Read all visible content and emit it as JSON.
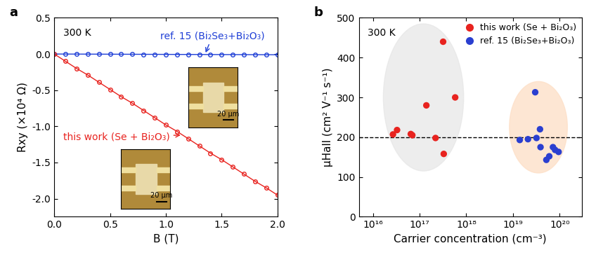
{
  "chart_data": [
    {
      "type": "line",
      "title": "a",
      "x_label": "B (T)",
      "y_label": "Rxy (×10⁴ Ω)",
      "annotations": [
        "300 K",
        "20 μm",
        "20 μm"
      ],
      "x": [
        0.0,
        0.1,
        0.2,
        0.3,
        0.4,
        0.5,
        0.6,
        0.7,
        0.8,
        0.9,
        1.0,
        1.1,
        1.2,
        1.3,
        1.4,
        1.5,
        1.6,
        1.7,
        1.8,
        1.9,
        2.0
      ],
      "series": [
        {
          "name": "ref. 15 (Bi₂Se₃+Bi₂O₃)",
          "color": "#1f3fd6",
          "marker": "o",
          "values": [
            0.0,
            -0.0005,
            -0.001,
            -0.0015,
            -0.002,
            -0.0025,
            -0.003,
            -0.0035,
            -0.004,
            -0.0045,
            -0.005,
            -0.0055,
            -0.006,
            -0.0065,
            -0.007,
            -0.0075,
            -0.008,
            -0.0085,
            -0.009,
            -0.0095,
            -0.01
          ]
        },
        {
          "name": "this work (Se + Bi₂O₃)",
          "color": "#e8231f",
          "marker": "o",
          "values": [
            0.0,
            -0.1,
            -0.2,
            -0.29,
            -0.39,
            -0.49,
            -0.59,
            -0.68,
            -0.78,
            -0.88,
            -0.98,
            -1.07,
            -1.17,
            -1.27,
            -1.37,
            -1.46,
            -1.56,
            -1.66,
            -1.76,
            -1.85,
            -1.95
          ]
        }
      ],
      "xlim": [
        0.0,
        2.0
      ],
      "xticks": [
        0.0,
        0.5,
        1.0,
        1.5,
        2.0
      ],
      "ylim": [
        -2.25,
        0.5
      ],
      "yticks": [
        -2.0,
        -1.5,
        -1.0,
        -0.5,
        0.0,
        0.5
      ]
    },
    {
      "type": "scatter",
      "title": "b",
      "x_label": "Carrier concentration (cm⁻³)",
      "y_label": "μHall (cm² V⁻¹ s⁻¹)",
      "annotations": [
        "300 K"
      ],
      "log": "x",
      "legend": "upper right",
      "hline": 200,
      "series": [
        {
          "name": "this work (Se + Bi₂O₃)",
          "color": "#e8231f",
          "marker": "o",
          "x": [
            2.7e+16,
            3.3e+16,
            6.5e+16,
            7e+16,
            1.4e+17,
            2.2e+17,
            3.2e+17,
            3.3e+17,
            5.8e+17
          ],
          "values": [
            207,
            218,
            208,
            205,
            280,
            198,
            440,
            158,
            300
          ]
        },
        {
          "name": "ref. 15 (Bi₂Se₃+Bi₂O₃)",
          "color": "#2a3fd0",
          "marker": "o",
          "x": [
            1.4e+19,
            2.1e+19,
            3e+19,
            3.2e+19,
            3.8e+19,
            3.9e+19,
            5.2e+19,
            6e+19,
            7.2e+19,
            8e+19,
            9.5e+19
          ],
          "values": [
            193,
            195,
            313,
            198,
            220,
            175,
            143,
            152,
            175,
            168,
            163
          ]
        }
      ],
      "xlim": [
        5000000000000000.0,
        3e+20
      ],
      "xticks": [
        {
          "value": 1e+16,
          "label": "10¹⁶"
        },
        {
          "value": 1e+17,
          "label": "10¹⁷"
        },
        {
          "value": 1e+18,
          "label": "10¹⁸"
        },
        {
          "value": 1e+19,
          "label": "10¹⁹"
        },
        {
          "value": 1e+20,
          "label": "10²⁰"
        }
      ],
      "ylim": [
        0,
        500
      ],
      "yticks": [
        0,
        100,
        200,
        300,
        400,
        500
      ]
    }
  ]
}
